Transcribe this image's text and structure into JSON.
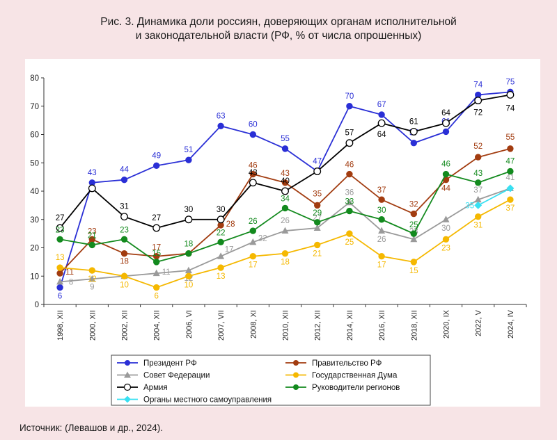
{
  "title_line1": "Рис. 3. Динамика доли россиян, доверяющих органам исполнительной",
  "title_line2": "и законодательной власти (РФ, % от числа опрошенных)",
  "source": "Источник: (Левашов и др., 2024).",
  "chart_data": {
    "type": "line",
    "categories": [
      "1998, XII",
      "2000, XII",
      "2002, XII",
      "2004, XII",
      "2006, VI",
      "2007, VII",
      "2008, XI",
      "2010, XII",
      "2012, XII",
      "2014, XII",
      "2016, XII",
      "2018, XII",
      "2020, IX",
      "2022, V",
      "2024, IV"
    ],
    "ylim": [
      0,
      80
    ],
    "yticks": [
      0,
      10,
      20,
      30,
      40,
      50,
      60,
      70,
      80
    ],
    "grid": false,
    "legend_position": "bottom",
    "series": [
      {
        "name": "Президент РФ",
        "color": "#2a2fd6",
        "marker": "circle",
        "values": [
          6,
          43,
          44,
          49,
          51,
          63,
          60,
          55,
          47,
          70,
          67,
          57,
          61,
          74,
          75
        ],
        "labels": [
          "6",
          "43",
          "44",
          "49",
          "51",
          "63",
          "60",
          "55",
          "47",
          "70",
          "67",
          "57",
          "61",
          "74",
          "75"
        ]
      },
      {
        "name": "Правительство РФ",
        "color": "#a23c10",
        "marker": "circle",
        "values": [
          11,
          23,
          18,
          17,
          18,
          28,
          46,
          43,
          35,
          46,
          37,
          32,
          44,
          52,
          55
        ],
        "labels": [
          "11",
          "23",
          "18",
          "17",
          "",
          "28",
          "46",
          "43",
          "35",
          "46",
          "37",
          "32",
          "44",
          "52",
          "55"
        ]
      },
      {
        "name": "Совет Федерации",
        "color": "#9a9a9a",
        "marker": "triangle",
        "values": [
          8,
          9,
          10,
          11,
          12,
          17,
          22,
          26,
          27,
          36,
          26,
          23,
          30,
          37,
          41
        ],
        "labels": [
          "8",
          "9",
          "",
          "11",
          "12",
          "17",
          "22",
          "26",
          "27",
          "36",
          "26",
          "23",
          "30",
          "37",
          "41"
        ]
      },
      {
        "name": "Государственная Дума",
        "color": "#f5b800",
        "marker": "circle",
        "values": [
          13,
          12,
          10,
          6,
          10,
          13,
          17,
          18,
          21,
          25,
          17,
          15,
          23,
          31,
          37
        ],
        "labels": [
          "13",
          "12",
          "10",
          "6",
          "10",
          "13",
          "17",
          "18",
          "21",
          "25",
          "17",
          "15",
          "23",
          "31",
          "37"
        ]
      },
      {
        "name": "Армия",
        "color": "#000000",
        "marker": "open-circle",
        "values": [
          27,
          41,
          31,
          27,
          30,
          30,
          43,
          40,
          47,
          57,
          64,
          61,
          64,
          72,
          74
        ],
        "labels": [
          "27",
          "",
          "31",
          "27",
          "30",
          "30",
          "43",
          "40",
          "",
          "57",
          "64",
          "61",
          "64",
          "72",
          "74"
        ]
      },
      {
        "name": "Руководители регионов",
        "color": "#138a1e",
        "marker": "circle",
        "values": [
          23,
          21,
          23,
          15,
          18,
          22,
          26,
          34,
          29,
          33,
          30,
          25,
          46,
          43,
          47
        ],
        "labels": [
          "23",
          "21",
          "23",
          "15",
          "18",
          "22",
          "26",
          "34",
          "29",
          "33",
          "30",
          "25",
          "46",
          "43",
          "47"
        ]
      },
      {
        "name": "Органы местного самоуправления",
        "color": "#38e0f2",
        "marker": "diamond",
        "values": [
          null,
          null,
          null,
          null,
          null,
          null,
          null,
          null,
          null,
          null,
          null,
          null,
          null,
          35,
          41
        ],
        "labels": [
          "",
          "",
          "",
          "",
          "",
          "",
          "",
          "",
          "",
          "",
          "",
          "",
          "",
          "35",
          ""
        ]
      }
    ]
  }
}
